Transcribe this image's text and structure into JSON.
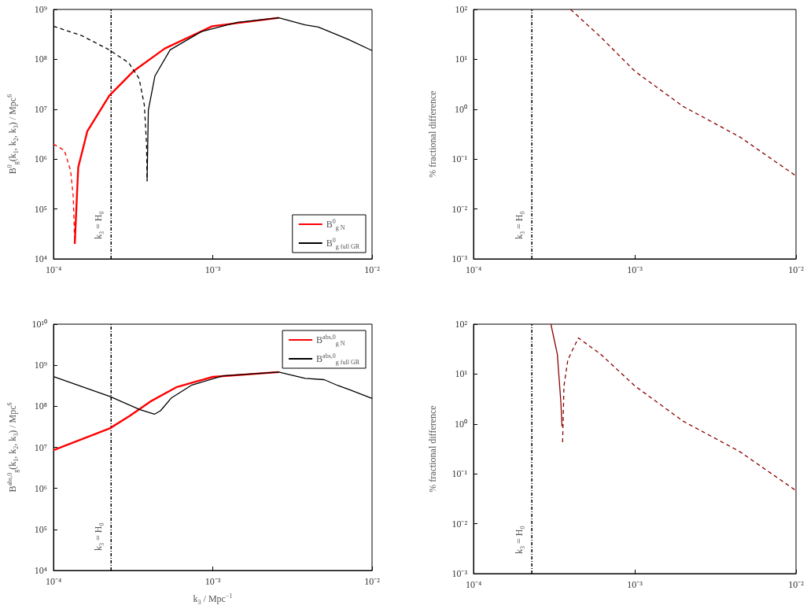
{
  "chart_data": [
    {
      "type": "line",
      "ylabel": "B$^{0}$$_{g}$(k$_{1}$, k$_{2}$, k$_{3}$) / Mpc$^{6}$",
      "log": "xy",
      "legend": "bottom right",
      "xlim": [
        0.0001,
        0.01
      ],
      "xticks": [
        {
          "value": 0.0001,
          "label": "10⁻⁴"
        },
        {
          "value": 0.001,
          "label": "10⁻³"
        },
        {
          "value": 0.01,
          "label": "10⁻²"
        }
      ],
      "ylim": [
        10000,
        1000000000
      ],
      "yticks": [
        {
          "value": 10000,
          "label": "10⁴"
        },
        {
          "value": 100000,
          "label": "10⁵"
        },
        {
          "value": 1000000,
          "label": "10⁶"
        },
        {
          "value": 10000000,
          "label": "10⁷"
        },
        {
          "value": 100000000,
          "label": "10⁸"
        },
        {
          "value": 1000000000,
          "label": "10⁹"
        }
      ],
      "ref_lines": [
        {
          "axis": "x",
          "value": 0.00023,
          "label": "k$_{3}$ = H$_{0}$",
          "color": "#000000",
          "line_style": "dotted"
        }
      ],
      "series": [
        {
          "name": "B$^{0}$$_{g N}$",
          "color": "#ff0000",
          "line_style": "solid",
          "x": [
            0.000136,
            0.000143,
            0.000163,
            0.000224,
            0.00032,
            0.0005,
            0.00099,
            0.0026
          ],
          "values": [
            20000,
            680000,
            3600000,
            18600000,
            59000000,
            165000000,
            460000000,
            680000000
          ]
        },
        {
          "name": "B$^{0}$$_{g full GR}$",
          "color": "#000000",
          "line_style": "solid",
          "x": [
            0.000387,
            0.000394,
            0.000433,
            0.00054,
            0.00085,
            0.00143,
            0.0026,
            0.0038,
            0.0046,
            0.0059,
            0.0071,
            0.01
          ],
          "values": [
            360000,
            9500000,
            46000000,
            155000000,
            360000000,
            550000000,
            680000000,
            490000000,
            445000000,
            320000000,
            250000000,
            150000000
          ]
        },
        {
          "color": "#ff0000",
          "line_style": "dashed",
          "x": [
            0.0001,
            0.000117,
            0.000128,
            0.000133,
            0.000136
          ],
          "values": [
            2000000,
            1500000,
            590000,
            180000,
            20000
          ]
        },
        {
          "color": "#000000",
          "line_style": "dashed",
          "x": [
            0.0001,
            0.00015,
            0.000224,
            0.000297,
            0.000345,
            0.000372,
            0.000384,
            0.000387
          ],
          "values": [
            460000000,
            300000000,
            155000000,
            85000000,
            41000000,
            12000000,
            2000000,
            360000
          ]
        }
      ]
    },
    {
      "type": "line",
      "ylabel": "% fractional difference",
      "log": "xy",
      "legend": false,
      "xlim": [
        0.0001,
        0.01
      ],
      "xticks": [
        {
          "value": 0.0001,
          "label": "10⁻⁴"
        },
        {
          "value": 0.001,
          "label": "10⁻³"
        },
        {
          "value": 0.01,
          "label": "10⁻²"
        }
      ],
      "ylim": [
        0.001,
        100
      ],
      "yticks": [
        {
          "value": 0.001,
          "label": "10⁻³"
        },
        {
          "value": 0.01,
          "label": "10⁻²"
        },
        {
          "value": 0.1,
          "label": "10⁻¹"
        },
        {
          "value": 1,
          "label": "10⁰"
        },
        {
          "value": 10,
          "label": "10¹"
        },
        {
          "value": 100,
          "label": "10²"
        }
      ],
      "ref_lines": [
        {
          "axis": "x",
          "value": 0.00023,
          "label": "k$_{3}$ = H$_{0}$",
          "color": "#000000",
          "line_style": "dotted"
        }
      ],
      "series": [
        {
          "color": "#8b0000",
          "line_style": "dashed",
          "x": [
            0.0004,
            0.000615,
            0.001,
            0.002,
            0.00447,
            0.01
          ],
          "values": [
            100,
            28,
            5.8,
            1.13,
            0.28,
            0.046
          ]
        }
      ]
    },
    {
      "type": "line",
      "xlabel": "k$_{3}$ / Mpc$^{−1}$",
      "ylabel": "B$^{abs,0}$$_{g}$(k$_{1}$, k$_{2}$, k$_{3}$) / Mpc$^{6}$",
      "log": "xy",
      "legend": "top right",
      "xlim": [
        0.0001,
        0.01
      ],
      "xticks": [
        {
          "value": 0.0001,
          "label": "10⁻⁴"
        },
        {
          "value": 0.001,
          "label": "10⁻³"
        },
        {
          "value": 0.01,
          "label": "10⁻²"
        }
      ],
      "ylim": [
        10000,
        10000000000
      ],
      "yticks": [
        {
          "value": 10000,
          "label": "10⁴"
        },
        {
          "value": 100000,
          "label": "10⁵"
        },
        {
          "value": 1000000,
          "label": "10⁶"
        },
        {
          "value": 10000000,
          "label": "10⁷"
        },
        {
          "value": 100000000,
          "label": "10⁸"
        },
        {
          "value": 1000000000,
          "label": "10⁹"
        },
        {
          "value": 10000000000,
          "label": "10¹⁰"
        }
      ],
      "ref_lines": [
        {
          "axis": "x",
          "value": 0.00023,
          "label": "k$_{3}$ = H$_{0}$",
          "color": "#000000",
          "line_style": "dotted"
        }
      ],
      "series": [
        {
          "name": "B$^{abs,0}$$_{g N}$",
          "color": "#ff0000",
          "line_style": "solid",
          "x": [
            0.0001,
            0.000152,
            0.000226,
            0.0003,
            0.000405,
            0.00059,
            0.001,
            0.0026
          ],
          "values": [
            8500000,
            16000000,
            29000000,
            58000000,
            130000000,
            290000000,
            520000000,
            680000000
          ]
        },
        {
          "name": "B$^{abs,0}$$_{g full GR}$",
          "color": "#000000",
          "line_style": "solid",
          "x": [
            0.0001,
            0.000226,
            0.000349,
            0.00043,
            0.00047,
            0.00055,
            0.00074,
            0.00116,
            0.0026,
            0.0038,
            0.005,
            0.0061,
            0.0073,
            0.01
          ],
          "values": [
            530000000,
            173000000,
            83000000,
            64000000,
            78000000,
            160000000,
            330000000,
            550000000,
            680000000,
            480000000,
            445000000,
            320000000,
            250000000,
            155000000
          ]
        }
      ]
    },
    {
      "type": "line",
      "ylabel": "% fractional difference",
      "log": "xy",
      "legend": false,
      "xlim": [
        0.0001,
        0.01
      ],
      "xticks": [
        {
          "value": 0.0001,
          "label": "10⁻⁴"
        },
        {
          "value": 0.001,
          "label": "10⁻³"
        },
        {
          "value": 0.01,
          "label": "10⁻²"
        }
      ],
      "ylim": [
        0.001,
        100
      ],
      "yticks": [
        {
          "value": 0.001,
          "label": "10⁻³"
        },
        {
          "value": 0.01,
          "label": "10⁻²"
        },
        {
          "value": 0.1,
          "label": "10⁻¹"
        },
        {
          "value": 1,
          "label": "10⁰"
        },
        {
          "value": 10,
          "label": "10¹"
        },
        {
          "value": 100,
          "label": "10²"
        }
      ],
      "ref_lines": [
        {
          "axis": "x",
          "value": 0.00023,
          "label": "k$_{3}$ = H$_{0}$",
          "color": "#000000",
          "line_style": "dotted"
        }
      ],
      "series": [
        {
          "color": "#8b0000",
          "line_style": "solid",
          "x": [
            0.000302,
            0.000331,
            0.000348,
            0.000354
          ],
          "values": [
            100,
            25,
            2.8,
            0.89
          ]
        },
        {
          "color": "#8b0000",
          "line_style": "dashed",
          "x": [
            0.000357,
            0.000364,
            0.000385,
            0.000447,
            0.000615,
            0.001,
            0.002,
            0.00447,
            0.01
          ],
          "values": [
            0.43,
            5.8,
            19.5,
            53,
            25,
            5.8,
            1.13,
            0.28,
            0.046
          ]
        }
      ]
    }
  ]
}
